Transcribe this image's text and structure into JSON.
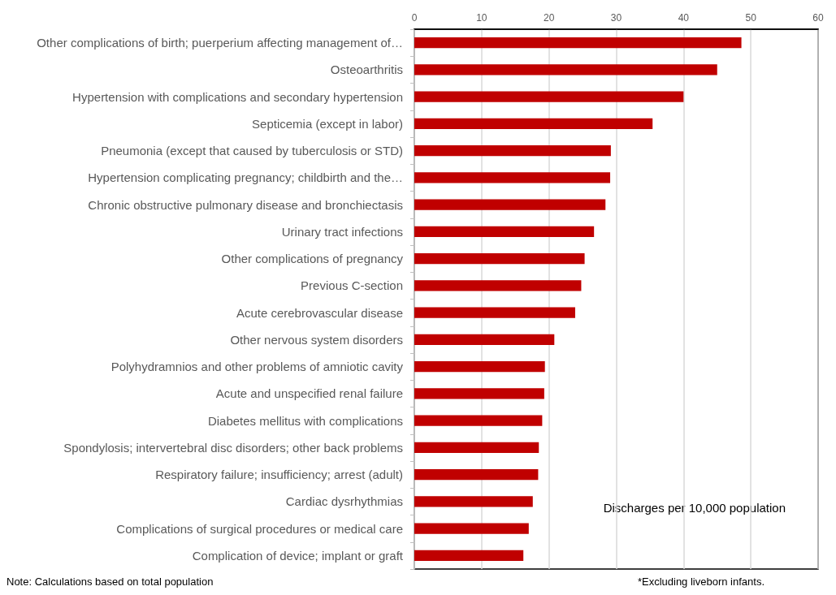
{
  "chart_data": {
    "type": "bar",
    "orientation": "horizontal",
    "xlabel": "Discharges per 10,000 population",
    "categories": [
      "Other complications of birth; puerperium affecting management of…",
      "Osteoarthritis",
      "Hypertension with complications and secondary hypertension",
      "Septicemia (except in labor)",
      "Pneumonia (except that caused by tuberculosis or STD)",
      "Hypertension complicating pregnancy; childbirth and the…",
      "Chronic obstructive pulmonary disease and bronchiectasis",
      "Urinary tract infections",
      "Other complications of pregnancy",
      "Previous C-section",
      "Acute cerebrovascular disease",
      "Other nervous system disorders",
      "Polyhydramnios and other problems of amniotic cavity",
      "Acute and unspecified renal failure",
      "Diabetes mellitus with complications",
      "Spondylosis; intervertebral disc disorders; other back problems",
      "Respiratory failure; insufficiency; arrest (adult)",
      "Cardiac dysrhythmias",
      "Complications of surgical procedures or medical care",
      "Complication of device; implant or graft"
    ],
    "values": [
      48.6,
      45.0,
      40.0,
      35.4,
      29.2,
      29.1,
      28.4,
      26.7,
      25.3,
      24.8,
      23.9,
      20.8,
      19.4,
      19.3,
      19.0,
      18.5,
      18.4,
      17.6,
      17.0,
      16.2
    ],
    "color": "#c00000",
    "xlim": [
      0,
      60
    ],
    "xticks": [
      0,
      10,
      20,
      30,
      40,
      50,
      60
    ],
    "grid": "x",
    "annotations": [
      "Note: Calculations based on total population",
      "*Excluding liveborn infants."
    ]
  }
}
